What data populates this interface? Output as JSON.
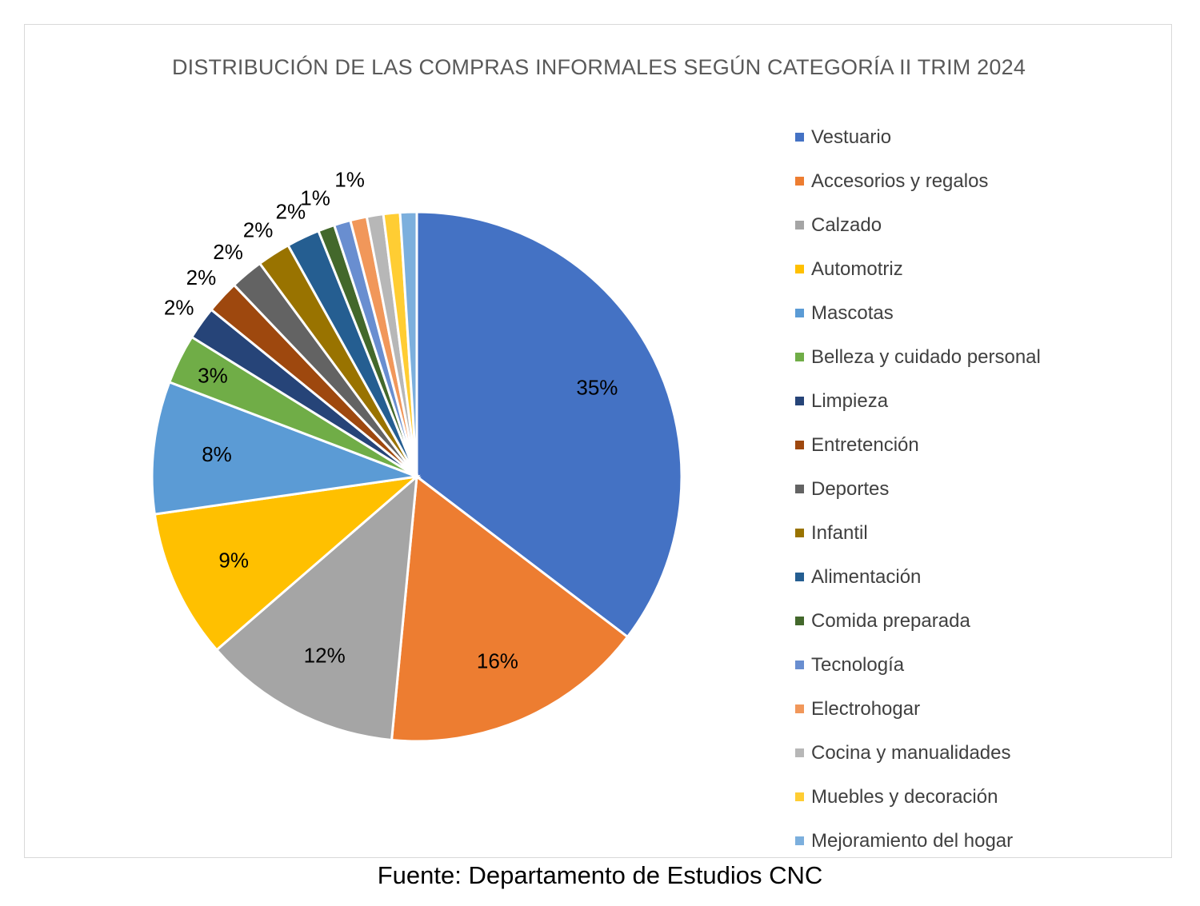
{
  "chart_data": {
    "type": "pie",
    "title": "DISTRIBUCIÓN DE LAS COMPRAS INFORMALES SEGÚN CATEGORÍA II TRIM 2024",
    "legend_position": "right",
    "slices": [
      {
        "label": "Vestuario",
        "value": 35,
        "data_label": "35%",
        "color": "#4472C4"
      },
      {
        "label": "Accesorios y regalos",
        "value": 16,
        "data_label": "16%",
        "color": "#ED7D31"
      },
      {
        "label": "Calzado",
        "value": 12,
        "data_label": "12%",
        "color": "#A5A5A5"
      },
      {
        "label": "Automotriz",
        "value": 9,
        "data_label": "9%",
        "color": "#FFC000"
      },
      {
        "label": "Mascotas",
        "value": 8,
        "data_label": "8%",
        "color": "#5B9BD5"
      },
      {
        "label": "Belleza y cuidado personal",
        "value": 3,
        "data_label": "3%",
        "color": "#70AD47"
      },
      {
        "label": "Limpieza",
        "value": 2,
        "data_label": "2%",
        "color": "#264478"
      },
      {
        "label": "Entretención",
        "value": 2,
        "data_label": "2%",
        "color": "#9E480E"
      },
      {
        "label": "Deportes",
        "value": 2,
        "data_label": "2%",
        "color": "#636363"
      },
      {
        "label": "Infantil",
        "value": 2,
        "data_label": "2%",
        "color": "#997300"
      },
      {
        "label": "Alimentación",
        "value": 2,
        "data_label": "2%",
        "color": "#255E91"
      },
      {
        "label": "Comida preparada",
        "value": 1,
        "data_label": "1%",
        "color": "#43682B"
      },
      {
        "label": "Tecnología",
        "value": 1,
        "data_label": "",
        "color": "#698ED0"
      },
      {
        "label": "Electrohogar",
        "value": 1,
        "data_label": "1%",
        "color": "#F1975A"
      },
      {
        "label": "Cocina y manualidades",
        "value": 1,
        "data_label": "",
        "color": "#B7B7B7"
      },
      {
        "label": "Muebles y decoración",
        "value": 1,
        "data_label": "",
        "color": "#FFCD33"
      },
      {
        "label": "Mejoramiento del hogar",
        "value": 1,
        "data_label": "",
        "color": "#7CAFDD"
      }
    ]
  },
  "source_note": "Fuente: Departamento de Estudios CNC"
}
